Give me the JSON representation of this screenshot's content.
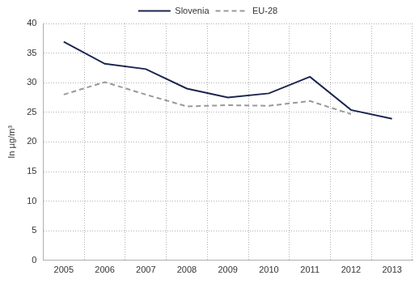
{
  "chart_data": {
    "type": "line",
    "y_label": "In µg/m³",
    "categories": [
      "2005",
      "2006",
      "2007",
      "2008",
      "2009",
      "2010",
      "2011",
      "2012",
      "2013"
    ],
    "series": [
      {
        "name": "Slovenia",
        "color": "#1b2550",
        "line_style": "solid",
        "marker": "none",
        "values": [
          36.9,
          33.2,
          32.3,
          29.0,
          27.5,
          28.2,
          31.0,
          25.4,
          23.9
        ]
      },
      {
        "name": "EU-28",
        "color": "#999999",
        "line_style": "dashed",
        "marker": "none",
        "values": [
          28.0,
          30.1,
          28.0,
          26.0,
          26.2,
          26.1,
          26.9,
          24.7,
          null
        ]
      }
    ],
    "ylim": [
      0,
      40
    ],
    "yticks": [
      0,
      5,
      10,
      15,
      20,
      25,
      30,
      35,
      40
    ],
    "grid": true,
    "legend": "top"
  }
}
